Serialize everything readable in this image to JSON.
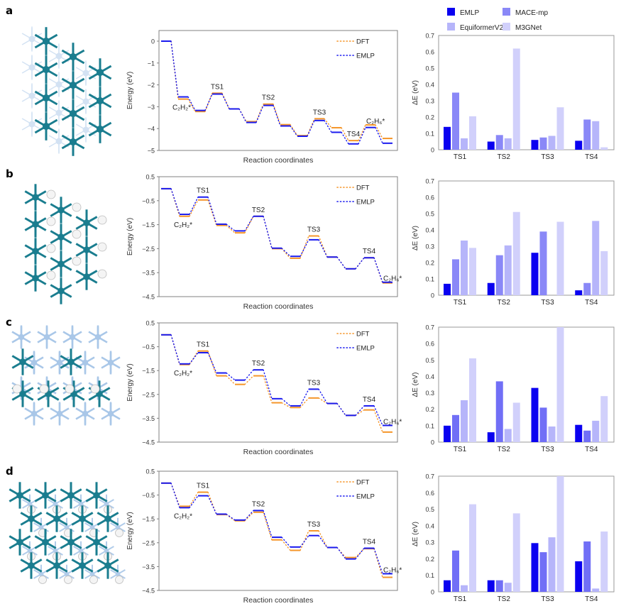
{
  "panels": [
    "a",
    "b",
    "c",
    "d"
  ],
  "colors": {
    "dft": "#f5962a",
    "emlp": "#1a1aef",
    "bar_emlp": "#0a00f0",
    "bar_mace": "#8a88f7",
    "bar_equiformer": "#b6b5fa",
    "bar_m3gnet": "#d1d0fb",
    "bar_mace_alt": "#716ff6",
    "axis": "#808080",
    "teal": "#1a7d8f",
    "lightblue": "#a9c7e8",
    "white_atom": "#e8e8e8"
  },
  "structure_images": [
    {
      "label": "a",
      "type": "pure-metal"
    },
    {
      "label": "b",
      "type": "metal-with-hydrogen-column"
    },
    {
      "label": "c",
      "type": "light-metal-with-dark-rows"
    },
    {
      "label": "d",
      "type": "mixed-alloy-grid"
    }
  ],
  "chart_data": [
    {
      "panel": "a",
      "type": "line",
      "kind": "energy-profile",
      "xlabel": "Reaction coordinates",
      "ylabel": "Energy (eV)",
      "ylim": [
        -5,
        0
      ],
      "yticks": [
        0,
        -1,
        -2,
        -3,
        -4,
        -5
      ],
      "ytick_labels": [
        "0",
        "−1",
        "−2",
        "−3",
        "−4",
        "−5"
      ],
      "legend": [
        "DFT",
        "EMLP"
      ],
      "legend_position": "top-right",
      "annotations": [
        {
          "text": "C₂H₂*",
          "state": 1
        },
        {
          "text": "TS1",
          "state": 3
        },
        {
          "text": "TS2",
          "state": 6
        },
        {
          "text": "TS3",
          "state": 9
        },
        {
          "text": "TS4",
          "state": 11
        },
        {
          "text": "C₂H₆*",
          "state": 12
        }
      ],
      "series": [
        {
          "name": "DFT",
          "values": [
            0,
            -2.65,
            -3.22,
            -2.38,
            -3.1,
            -3.68,
            -2.88,
            -3.82,
            -4.32,
            -3.55,
            -3.96,
            -4.55,
            -3.83,
            -4.45
          ]
        },
        {
          "name": "EMLP",
          "values": [
            0,
            -2.55,
            -3.17,
            -2.42,
            -3.1,
            -3.72,
            -2.94,
            -3.88,
            -4.35,
            -3.63,
            -4.17,
            -4.7,
            -3.95,
            -4.67
          ]
        }
      ]
    },
    {
      "panel": "b",
      "type": "line",
      "kind": "energy-profile",
      "xlabel": "Reaction coordinates",
      "ylabel": "Energy (eV)",
      "ylim": [
        -4.5,
        0.5
      ],
      "yticks": [
        0.5,
        -0.5,
        -1.5,
        -2.5,
        -3.5,
        -4.5
      ],
      "ytick_labels": [
        "0.5",
        "−0.5",
        "−1.5",
        "−2.5",
        "−3.5",
        "−4.5"
      ],
      "legend": [
        "DFT",
        "EMLP"
      ],
      "legend_position": "top-right",
      "annotations": [
        {
          "text": "C₂H₂*",
          "state": 1
        },
        {
          "text": "TS1",
          "state": 2
        },
        {
          "text": "TS2",
          "state": 5
        },
        {
          "text": "TS3",
          "state": 8
        },
        {
          "text": "TS4",
          "state": 11
        },
        {
          "text": "C₂H₆*",
          "state": 12
        }
      ],
      "series": [
        {
          "name": "DFT",
          "values": [
            0,
            -1.15,
            -0.47,
            -1.53,
            -1.84,
            -1.15,
            -2.5,
            -2.9,
            -1.97,
            -2.85,
            -3.34,
            -2.88,
            -3.93
          ]
        },
        {
          "name": "EMLP",
          "values": [
            0,
            -1.07,
            -0.35,
            -1.48,
            -1.76,
            -1.15,
            -2.48,
            -2.82,
            -2.13,
            -2.85,
            -3.34,
            -2.88,
            -3.9
          ]
        }
      ]
    },
    {
      "panel": "c",
      "type": "line",
      "kind": "energy-profile",
      "xlabel": "Reaction coordinates",
      "ylabel": "Energy (eV)",
      "ylim": [
        -4.5,
        0.5
      ],
      "yticks": [
        0.5,
        -0.5,
        -1.5,
        -2.5,
        -3.5,
        -4.5
      ],
      "ytick_labels": [
        "0.5",
        "−0.5",
        "−1.5",
        "−2.5",
        "−3.5",
        "−4.5"
      ],
      "legend": [
        "DFT",
        "EMLP"
      ],
      "legend_position": "top-right",
      "annotations": [
        {
          "text": "C₂H₂*",
          "state": 1
        },
        {
          "text": "TS1",
          "state": 2
        },
        {
          "text": "TS2",
          "state": 5
        },
        {
          "text": "TS3",
          "state": 8
        },
        {
          "text": "TS4",
          "state": 11
        },
        {
          "text": "C₂H₆*",
          "state": 12
        }
      ],
      "series": [
        {
          "name": "DFT",
          "values": [
            0,
            -1.25,
            -0.68,
            -1.72,
            -2.08,
            -1.72,
            -2.85,
            -3.05,
            -2.65,
            -2.88,
            -3.38,
            -3.15,
            -4.08
          ]
        },
        {
          "name": "EMLP",
          "values": [
            0,
            -1.22,
            -0.75,
            -1.6,
            -1.9,
            -1.47,
            -2.68,
            -2.98,
            -2.28,
            -2.88,
            -3.38,
            -2.98,
            -3.8
          ]
        }
      ]
    },
    {
      "panel": "d",
      "type": "line",
      "kind": "energy-profile",
      "xlabel": "Reaction coordinates",
      "ylabel": "Energy (eV)",
      "ylim": [
        -4.5,
        0.5
      ],
      "yticks": [
        0.5,
        -0.5,
        -1.5,
        -2.5,
        -3.5,
        -4.5
      ],
      "ytick_labels": [
        "0.5",
        "−0.5",
        "−1.5",
        "−2.5",
        "−3.5",
        "−4.5"
      ],
      "legend": [
        "DFT",
        "EMLP"
      ],
      "legend_position": "top-right",
      "annotations": [
        {
          "text": "C₂H₂*",
          "state": 1
        },
        {
          "text": "TS1",
          "state": 2
        },
        {
          "text": "TS2",
          "state": 5
        },
        {
          "text": "TS3",
          "state": 8
        },
        {
          "text": "TS4",
          "state": 11
        },
        {
          "text": "C₂H₆*",
          "state": 12
        }
      ],
      "series": [
        {
          "name": "DFT",
          "values": [
            0,
            -0.97,
            -0.38,
            -1.32,
            -1.58,
            -1.22,
            -2.38,
            -2.82,
            -2.0,
            -2.7,
            -3.12,
            -2.75,
            -3.95
          ]
        },
        {
          "name": "EMLP",
          "values": [
            0,
            -1.03,
            -0.53,
            -1.3,
            -1.55,
            -1.15,
            -2.27,
            -2.68,
            -2.2,
            -2.7,
            -3.18,
            -2.73,
            -3.8
          ]
        }
      ]
    },
    {
      "panel": "a",
      "type": "bar",
      "ylabel": "ΔE (eV)",
      "ylim": [
        0,
        0.7
      ],
      "yticks": [
        0,
        0.1,
        0.2,
        0.3,
        0.4,
        0.5,
        0.6,
        0.7
      ],
      "ytick_labels": [
        "0",
        "0.1",
        "0.2",
        "0.3",
        "0.4",
        "0.5",
        "0.6",
        "0.7"
      ],
      "categories": [
        "TS1",
        "TS2",
        "TS3",
        "TS4"
      ],
      "legend_position": "top",
      "legend": [
        "EMLP",
        "MACE-mp",
        "EquiformerV2",
        "M3GNet"
      ],
      "series": [
        {
          "name": "EMLP",
          "values": [
            0.14,
            0.05,
            0.06,
            0.055
          ]
        },
        {
          "name": "MACE-mp",
          "values": [
            0.35,
            0.09,
            0.075,
            0.185
          ]
        },
        {
          "name": "EquiformerV2",
          "values": [
            0.07,
            0.07,
            0.085,
            0.175
          ]
        },
        {
          "name": "M3GNet",
          "values": [
            0.205,
            0.62,
            0.26,
            0.015
          ]
        }
      ]
    },
    {
      "panel": "b",
      "type": "bar",
      "ylabel": "ΔE (eV)",
      "ylim": [
        0,
        0.7
      ],
      "yticks": [
        0,
        0.1,
        0.2,
        0.3,
        0.4,
        0.5,
        0.6,
        0.7
      ],
      "ytick_labels": [
        "0",
        "0.1",
        "0.2",
        "0.3",
        "0.4",
        "0.5",
        "0.6",
        "0.7"
      ],
      "categories": [
        "TS1",
        "TS2",
        "TS3",
        "TS4"
      ],
      "series": [
        {
          "name": "EMLP",
          "values": [
            0.07,
            0.075,
            0.26,
            0.03
          ]
        },
        {
          "name": "MACE-mp",
          "values": [
            0.22,
            0.245,
            0.39,
            0.075
          ]
        },
        {
          "name": "EquiformerV2",
          "values": [
            0.335,
            0.305,
            0.0,
            0.455
          ]
        },
        {
          "name": "M3GNet",
          "values": [
            0.29,
            0.51,
            0.45,
            0.27
          ]
        }
      ]
    },
    {
      "panel": "c",
      "type": "bar",
      "ylabel": "ΔE (eV)",
      "ylim": [
        0,
        0.7
      ],
      "yticks": [
        0,
        0.1,
        0.2,
        0.3,
        0.4,
        0.5,
        0.6,
        0.7
      ],
      "ytick_labels": [
        "0",
        "0.1",
        "0.2",
        "0.3",
        "0.4",
        "0.5",
        "0.6",
        "0.7"
      ],
      "categories": [
        "TS1",
        "TS2",
        "TS3",
        "TS4"
      ],
      "series": [
        {
          "name": "EMLP",
          "values": [
            0.1,
            0.06,
            0.33,
            0.105
          ]
        },
        {
          "name": "MACE-mp",
          "values": [
            0.165,
            0.37,
            0.21,
            0.07
          ]
        },
        {
          "name": "EquiformerV2",
          "values": [
            0.255,
            0.08,
            0.095,
            0.13
          ]
        },
        {
          "name": "M3GNet",
          "values": [
            0.51,
            0.24,
            0.7,
            0.28
          ]
        }
      ]
    },
    {
      "panel": "d",
      "type": "bar",
      "ylabel": "ΔE (eV)",
      "ylim": [
        0,
        0.7
      ],
      "yticks": [
        0,
        0.1,
        0.2,
        0.3,
        0.4,
        0.5,
        0.6,
        0.7
      ],
      "ytick_labels": [
        "0",
        "0.1",
        "0.2",
        "0.3",
        "0.4",
        "0.5",
        "0.6",
        "0.7"
      ],
      "categories": [
        "TS1",
        "TS2",
        "TS3",
        "TS4"
      ],
      "series": [
        {
          "name": "EMLP",
          "values": [
            0.07,
            0.07,
            0.295,
            0.185
          ]
        },
        {
          "name": "MACE-mp",
          "values": [
            0.25,
            0.07,
            0.24,
            0.305
          ]
        },
        {
          "name": "EquiformerV2",
          "values": [
            0.04,
            0.055,
            0.33,
            0.02
          ]
        },
        {
          "name": "M3GNet",
          "values": [
            0.53,
            0.475,
            0.7,
            0.365
          ]
        }
      ]
    }
  ]
}
